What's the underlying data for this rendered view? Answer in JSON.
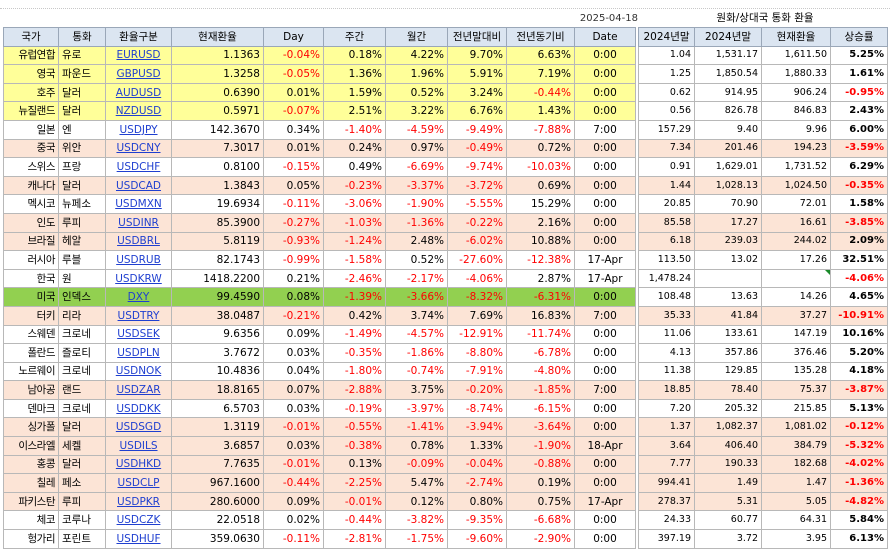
{
  "header": {
    "date": "2025-04-18",
    "right_title": "원화/상대국 통화 환율",
    "cols": [
      "국가",
      "통화",
      "환율구분",
      "현재환율",
      "Day",
      "주간",
      "월간",
      "전년말대비",
      "전년동기비",
      "Date"
    ],
    "right_cols": [
      "2024년말",
      "2024년말",
      "현재환율",
      "상승률"
    ]
  },
  "rows": [
    {
      "country": "유럽연합",
      "currency": "유로",
      "ticker": "EURUSD",
      "rate": "1.1363",
      "day": "-0.04%",
      "week": "0.18%",
      "month": "4.22%",
      "ytd": "9.70%",
      "yoy": "6.63%",
      "date": "0:00",
      "r1": "1.04",
      "r2": "1,531.17",
      "r3": "1,611.50",
      "r4": "5.25%",
      "color": "y"
    },
    {
      "country": "영국",
      "currency": "파운드",
      "ticker": "GBPUSD",
      "rate": "1.3258",
      "day": "-0.05%",
      "week": "1.36%",
      "month": "1.96%",
      "ytd": "5.91%",
      "yoy": "7.19%",
      "date": "0:00",
      "r1": "1.25",
      "r2": "1,850.54",
      "r3": "1,880.33",
      "r4": "1.61%",
      "color": "y"
    },
    {
      "country": "호주",
      "currency": "달러",
      "ticker": "AUDUSD",
      "rate": "0.6390",
      "day": "0.01%",
      "week": "1.59%",
      "month": "0.52%",
      "ytd": "3.24%",
      "yoy": "-0.44%",
      "date": "0:00",
      "r1": "0.62",
      "r2": "914.95",
      "r3": "906.24",
      "r4": "-0.95%",
      "color": "y"
    },
    {
      "country": "뉴질랜드",
      "currency": "달러",
      "ticker": "NZDUSD",
      "rate": "0.5971",
      "day": "-0.07%",
      "week": "2.51%",
      "month": "3.22%",
      "ytd": "6.76%",
      "yoy": "1.43%",
      "date": "0:00",
      "r1": "0.56",
      "r2": "826.78",
      "r3": "846.83",
      "r4": "2.43%",
      "color": "y"
    },
    {
      "country": "일본",
      "currency": "엔",
      "ticker": "USDJPY",
      "rate": "142.3670",
      "day": "0.34%",
      "week": "-1.40%",
      "month": "-4.59%",
      "ytd": "-9.49%",
      "yoy": "-7.88%",
      "date": "7:00",
      "r1": "157.29",
      "r2": "9.40",
      "r3": "9.96",
      "r4": "6.00%",
      "color": "w"
    },
    {
      "country": "중국",
      "currency": "위안",
      "ticker": "USDCNY",
      "rate": "7.3017",
      "day": "0.01%",
      "week": "0.24%",
      "month": "0.97%",
      "ytd": "-0.49%",
      "yoy": "0.72%",
      "date": "0:00",
      "r1": "7.34",
      "r2": "201.46",
      "r3": "194.23",
      "r4": "-3.59%",
      "color": "p"
    },
    {
      "country": "스위스",
      "currency": "프랑",
      "ticker": "USDCHF",
      "rate": "0.8100",
      "day": "-0.15%",
      "week": "0.49%",
      "month": "-6.69%",
      "ytd": "-9.74%",
      "yoy": "-10.03%",
      "date": "0:00",
      "r1": "0.91",
      "r2": "1,629.01",
      "r3": "1,731.52",
      "r4": "6.29%",
      "color": "w"
    },
    {
      "country": "캐나다",
      "currency": "달러",
      "ticker": "USDCAD",
      "rate": "1.3843",
      "day": "0.05%",
      "week": "-0.23%",
      "month": "-3.37%",
      "ytd": "-3.72%",
      "yoy": "0.69%",
      "date": "0:00",
      "r1": "1.44",
      "r2": "1,028.13",
      "r3": "1,024.50",
      "r4": "-0.35%",
      "color": "p"
    },
    {
      "country": "멕시코",
      "currency": "뉴페소",
      "ticker": "USDMXN",
      "rate": "19.6934",
      "day": "-0.11%",
      "week": "-3.06%",
      "month": "-1.90%",
      "ytd": "-5.55%",
      "yoy": "15.29%",
      "date": "0:00",
      "r1": "20.85",
      "r2": "70.90",
      "r3": "72.01",
      "r4": "1.58%",
      "color": "w"
    },
    {
      "country": "인도",
      "currency": "루피",
      "ticker": "USDINR",
      "rate": "85.3900",
      "day": "-0.27%",
      "week": "-1.03%",
      "month": "-1.36%",
      "ytd": "-0.22%",
      "yoy": "2.16%",
      "date": "0:00",
      "r1": "85.58",
      "r2": "17.27",
      "r3": "16.61",
      "r4": "-3.85%",
      "color": "p"
    },
    {
      "country": "브라질",
      "currency": "헤알",
      "ticker": "USDBRL",
      "rate": "5.8119",
      "day": "-0.93%",
      "week": "-1.24%",
      "month": "2.48%",
      "ytd": "-6.02%",
      "yoy": "10.88%",
      "date": "0:00",
      "r1": "6.18",
      "r2": "239.03",
      "r3": "244.02",
      "r4": "2.09%",
      "color": "p"
    },
    {
      "country": "러시아",
      "currency": "루블",
      "ticker": "USDRUB",
      "rate": "82.1743",
      "day": "-0.99%",
      "week": "-1.58%",
      "month": "0.52%",
      "ytd": "-27.60%",
      "yoy": "-12.38%",
      "date": "17-Apr",
      "r1": "113.50",
      "r2": "13.02",
      "r3": "17.26",
      "r4": "32.51%",
      "color": "w"
    },
    {
      "country": "한국",
      "currency": "원",
      "ticker": "USDKRW",
      "rate": "1418.2200",
      "day": "0.21%",
      "week": "-2.46%",
      "month": "-2.17%",
      "ytd": "-4.06%",
      "yoy": "2.87%",
      "date": "17-Apr",
      "r1": "1,478.24",
      "r2": "",
      "r3": "",
      "r4": "-4.06%",
      "color": "w"
    },
    {
      "country": "미국",
      "currency": "인덱스",
      "ticker": "DXY",
      "rate": "99.4590",
      "day": "0.08%",
      "week": "-1.39%",
      "month": "-3.66%",
      "ytd": "-8.32%",
      "yoy": "-6.31%",
      "date": "0:00",
      "r1": "108.48",
      "r2": "13.63",
      "r3": "14.26",
      "r4": "4.65%",
      "color": "g"
    },
    {
      "country": "터키",
      "currency": "리라",
      "ticker": "USDTRY",
      "rate": "38.0487",
      "day": "-0.21%",
      "week": "0.42%",
      "month": "3.74%",
      "ytd": "7.69%",
      "yoy": "16.83%",
      "date": "7:00",
      "r1": "35.33",
      "r2": "41.84",
      "r3": "37.27",
      "r4": "-10.91%",
      "color": "p"
    },
    {
      "country": "스웨덴",
      "currency": "크로네",
      "ticker": "USDSEK",
      "rate": "9.6356",
      "day": "0.09%",
      "week": "-1.49%",
      "month": "-4.57%",
      "ytd": "-12.91%",
      "yoy": "-11.74%",
      "date": "0:00",
      "r1": "11.06",
      "r2": "133.61",
      "r3": "147.19",
      "r4": "10.16%",
      "color": "w"
    },
    {
      "country": "폴란드",
      "currency": "즐로티",
      "ticker": "USDPLN",
      "rate": "3.7672",
      "day": "0.03%",
      "week": "-0.35%",
      "month": "-1.86%",
      "ytd": "-8.80%",
      "yoy": "-6.78%",
      "date": "0:00",
      "r1": "4.13",
      "r2": "357.86",
      "r3": "376.46",
      "r4": "5.20%",
      "color": "w"
    },
    {
      "country": "노르웨이",
      "currency": "크로네",
      "ticker": "USDNOK",
      "rate": "10.4836",
      "day": "0.04%",
      "week": "-1.80%",
      "month": "-0.74%",
      "ytd": "-7.91%",
      "yoy": "-4.80%",
      "date": "0:00",
      "r1": "11.38",
      "r2": "129.85",
      "r3": "135.28",
      "r4": "4.18%",
      "color": "w"
    },
    {
      "country": "남아공",
      "currency": "랜드",
      "ticker": "USDZAR",
      "rate": "18.8165",
      "day": "0.07%",
      "week": "-2.88%",
      "month": "3.75%",
      "ytd": "-0.20%",
      "yoy": "-1.85%",
      "date": "7:00",
      "r1": "18.85",
      "r2": "78.40",
      "r3": "75.37",
      "r4": "-3.87%",
      "color": "p"
    },
    {
      "country": "덴마크",
      "currency": "크로네",
      "ticker": "USDDKK",
      "rate": "6.5703",
      "day": "0.03%",
      "week": "-0.19%",
      "month": "-3.97%",
      "ytd": "-8.74%",
      "yoy": "-6.15%",
      "date": "0:00",
      "r1": "7.20",
      "r2": "205.32",
      "r3": "215.85",
      "r4": "5.13%",
      "color": "w"
    },
    {
      "country": "싱가폴",
      "currency": "달러",
      "ticker": "USDSGD",
      "rate": "1.3119",
      "day": "-0.01%",
      "week": "-0.55%",
      "month": "-1.41%",
      "ytd": "-3.94%",
      "yoy": "-3.64%",
      "date": "0:00",
      "r1": "1.37",
      "r2": "1,082.37",
      "r3": "1,081.02",
      "r4": "-0.12%",
      "color": "p"
    },
    {
      "country": "이스라엘",
      "currency": "세켈",
      "ticker": "USDILS",
      "rate": "3.6857",
      "day": "0.03%",
      "week": "-0.38%",
      "month": "0.78%",
      "ytd": "1.33%",
      "yoy": "-1.90%",
      "date": "18-Apr",
      "r1": "3.64",
      "r2": "406.40",
      "r3": "384.79",
      "r4": "-5.32%",
      "color": "p"
    },
    {
      "country": "홍콩",
      "currency": "달러",
      "ticker": "USDHKD",
      "rate": "7.7635",
      "day": "-0.01%",
      "week": "0.13%",
      "month": "-0.09%",
      "ytd": "-0.04%",
      "yoy": "-0.88%",
      "date": "0:00",
      "r1": "7.77",
      "r2": "190.33",
      "r3": "182.68",
      "r4": "-4.02%",
      "color": "p"
    },
    {
      "country": "칠레",
      "currency": "페소",
      "ticker": "USDCLP",
      "rate": "967.1600",
      "day": "-0.44%",
      "week": "-2.25%",
      "month": "5.47%",
      "ytd": "-2.74%",
      "yoy": "0.19%",
      "date": "0:00",
      "r1": "994.41",
      "r2": "1.49",
      "r3": "1.47",
      "r4": "-1.36%",
      "color": "p"
    },
    {
      "country": "파키스탄",
      "currency": "루피",
      "ticker": "USDPKR",
      "rate": "280.6000",
      "day": "0.09%",
      "week": "-0.01%",
      "month": "0.12%",
      "ytd": "0.80%",
      "yoy": "0.75%",
      "date": "17-Apr",
      "r1": "278.37",
      "r2": "5.31",
      "r3": "5.05",
      "r4": "-4.82%",
      "color": "p"
    },
    {
      "country": "체코",
      "currency": "코루나",
      "ticker": "USDCZK",
      "rate": "22.0518",
      "day": "0.02%",
      "week": "-0.44%",
      "month": "-3.82%",
      "ytd": "-9.35%",
      "yoy": "-6.68%",
      "date": "0:00",
      "r1": "24.33",
      "r2": "60.77",
      "r3": "64.31",
      "r4": "5.84%",
      "color": "w"
    },
    {
      "country": "헝가리",
      "currency": "포린트",
      "ticker": "USDHUF",
      "rate": "359.0630",
      "day": "-0.11%",
      "week": "-2.81%",
      "month": "-1.75%",
      "ytd": "-9.60%",
      "yoy": "-2.90%",
      "date": "0:00",
      "r1": "397.19",
      "r2": "3.72",
      "r3": "3.95",
      "r4": "6.13%",
      "color": "w"
    }
  ]
}
